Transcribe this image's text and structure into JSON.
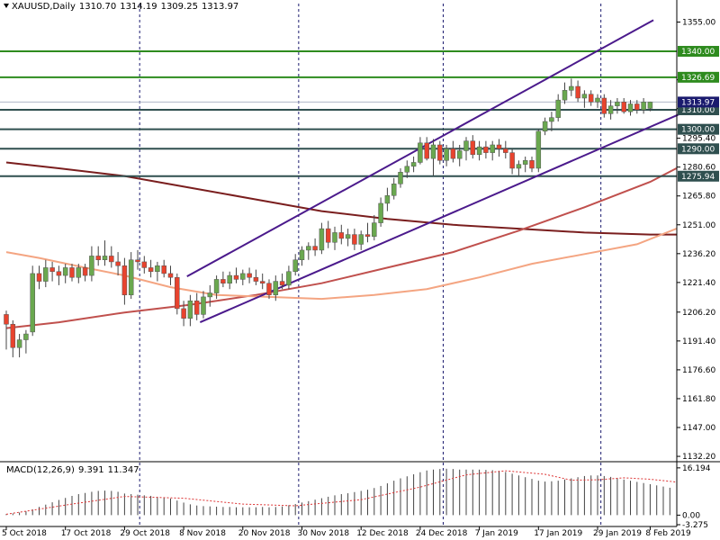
{
  "header": {
    "symbol": "XAUUSD,Daily",
    "open": "1310.70",
    "high": "1314.19",
    "low": "1309.25",
    "close": "1313.97"
  },
  "macd_header": {
    "name": "MACD(12,26,9)",
    "main": "9.391",
    "signal": "11.347"
  },
  "colors": {
    "bull": "#6aa84f",
    "bear": "#e8432e",
    "ma_fast": "#f4a582",
    "ma_mid": "#c0504d",
    "ma_slow": "#7a1e1e",
    "channel": "#4b1a8c",
    "support_green": "#2e8b1e",
    "support_dark": "#2f4f4f",
    "price_label": "#1a1a6e"
  },
  "chart_data": {
    "type": "candlestick",
    "ylim": [
      1129.92,
      1364.48
    ],
    "y_ticks": [
      "1355.00",
      "1325.40",
      "1310.60",
      "1295.40",
      "1280.60",
      "1265.80",
      "1251.00",
      "1236.20",
      "1221.40",
      "1206.20",
      "1191.40",
      "1176.60",
      "1161.80",
      "1147.00",
      "1132.20"
    ],
    "x_ticks": [
      {
        "i": 0,
        "label": "5 Oct 2018"
      },
      {
        "i": 9,
        "label": "17 Oct 2018"
      },
      {
        "i": 18,
        "label": "29 Oct 2018"
      },
      {
        "i": 27,
        "label": "8 Nov 2018"
      },
      {
        "i": 36,
        "label": "20 Nov 2018"
      },
      {
        "i": 45,
        "label": "30 Nov 2018"
      },
      {
        "i": 54,
        "label": "12 Dec 2018"
      },
      {
        "i": 63,
        "label": "24 Dec 2018"
      },
      {
        "i": 72,
        "label": "7 Jan 2019"
      },
      {
        "i": 81,
        "label": "17 Jan 2019"
      },
      {
        "i": 90,
        "label": "29 Jan 2019"
      },
      {
        "i": 98,
        "label": "8 Feb 2019"
      }
    ],
    "period_separators": [
      20.3,
      44.5,
      66.5,
      90.5
    ],
    "candles": [
      {
        "o": 1205.0,
        "h": 1207.0,
        "l": 1187.0,
        "c": 1200.0
      },
      {
        "o": 1200.0,
        "h": 1202.0,
        "l": 1183.0,
        "c": 1188.0
      },
      {
        "o": 1188.0,
        "h": 1195.0,
        "l": 1183.0,
        "c": 1192.0
      },
      {
        "o": 1192.0,
        "h": 1197.0,
        "l": 1185.0,
        "c": 1195.0
      },
      {
        "o": 1196.0,
        "h": 1230.0,
        "l": 1194.0,
        "c": 1226.0
      },
      {
        "o": 1226.0,
        "h": 1230.0,
        "l": 1218.0,
        "c": 1222.0
      },
      {
        "o": 1222.0,
        "h": 1233.0,
        "l": 1219.0,
        "c": 1229.0
      },
      {
        "o": 1229.0,
        "h": 1232.0,
        "l": 1222.0,
        "c": 1227.0
      },
      {
        "o": 1227.0,
        "h": 1230.0,
        "l": 1220.0,
        "c": 1225.0
      },
      {
        "o": 1225.0,
        "h": 1231.0,
        "l": 1221.0,
        "c": 1229.0
      },
      {
        "o": 1229.0,
        "h": 1231.0,
        "l": 1222.0,
        "c": 1224.0
      },
      {
        "o": 1224.0,
        "h": 1231.0,
        "l": 1221.0,
        "c": 1229.0
      },
      {
        "o": 1229.0,
        "h": 1231.0,
        "l": 1222.0,
        "c": 1225.0
      },
      {
        "o": 1225.0,
        "h": 1240.0,
        "l": 1222.0,
        "c": 1235.0
      },
      {
        "o": 1235.0,
        "h": 1240.0,
        "l": 1230.0,
        "c": 1233.0
      },
      {
        "o": 1233.0,
        "h": 1243.0,
        "l": 1230.0,
        "c": 1235.0
      },
      {
        "o": 1235.0,
        "h": 1240.0,
        "l": 1229.0,
        "c": 1232.0
      },
      {
        "o": 1232.0,
        "h": 1237.0,
        "l": 1225.0,
        "c": 1230.0
      },
      {
        "o": 1230.0,
        "h": 1234.0,
        "l": 1210.0,
        "c": 1215.0
      },
      {
        "o": 1215.0,
        "h": 1237.0,
        "l": 1213.0,
        "c": 1233.0
      },
      {
        "o": 1233.0,
        "h": 1238.0,
        "l": 1228.0,
        "c": 1232.0
      },
      {
        "o": 1232.0,
        "h": 1235.0,
        "l": 1226.0,
        "c": 1229.0
      },
      {
        "o": 1229.0,
        "h": 1233.0,
        "l": 1224.0,
        "c": 1227.0
      },
      {
        "o": 1227.0,
        "h": 1232.0,
        "l": 1222.0,
        "c": 1230.0
      },
      {
        "o": 1230.0,
        "h": 1233.0,
        "l": 1224.0,
        "c": 1226.0
      },
      {
        "o": 1226.0,
        "h": 1230.0,
        "l": 1220.0,
        "c": 1224.0
      },
      {
        "o": 1224.0,
        "h": 1226.0,
        "l": 1205.0,
        "c": 1208.0
      },
      {
        "o": 1208.0,
        "h": 1212.0,
        "l": 1199.0,
        "c": 1203.0
      },
      {
        "o": 1203.0,
        "h": 1215.0,
        "l": 1199.0,
        "c": 1212.0
      },
      {
        "o": 1212.0,
        "h": 1216.0,
        "l": 1202.0,
        "c": 1205.0
      },
      {
        "o": 1205.0,
        "h": 1217.0,
        "l": 1203.0,
        "c": 1214.0
      },
      {
        "o": 1214.0,
        "h": 1220.0,
        "l": 1209.0,
        "c": 1216.0
      },
      {
        "o": 1216.0,
        "h": 1225.0,
        "l": 1213.0,
        "c": 1223.0
      },
      {
        "o": 1223.0,
        "h": 1227.0,
        "l": 1219.0,
        "c": 1221.0
      },
      {
        "o": 1221.0,
        "h": 1227.0,
        "l": 1218.0,
        "c": 1225.0
      },
      {
        "o": 1225.0,
        "h": 1229.0,
        "l": 1221.0,
        "c": 1223.0
      },
      {
        "o": 1223.0,
        "h": 1228.0,
        "l": 1220.0,
        "c": 1226.0
      },
      {
        "o": 1226.0,
        "h": 1229.0,
        "l": 1221.0,
        "c": 1224.0
      },
      {
        "o": 1224.0,
        "h": 1228.0,
        "l": 1220.0,
        "c": 1222.0
      },
      {
        "o": 1222.0,
        "h": 1226.0,
        "l": 1218.0,
        "c": 1221.0
      },
      {
        "o": 1221.0,
        "h": 1223.0,
        "l": 1213.0,
        "c": 1215.0
      },
      {
        "o": 1215.0,
        "h": 1225.0,
        "l": 1212.0,
        "c": 1222.0
      },
      {
        "o": 1222.0,
        "h": 1226.0,
        "l": 1218.0,
        "c": 1220.0
      },
      {
        "o": 1220.0,
        "h": 1230.0,
        "l": 1218.0,
        "c": 1227.0
      },
      {
        "o": 1227.0,
        "h": 1236.0,
        "l": 1225.0,
        "c": 1233.0
      },
      {
        "o": 1233.0,
        "h": 1240.0,
        "l": 1230.0,
        "c": 1238.0
      },
      {
        "o": 1238.0,
        "h": 1242.0,
        "l": 1233.0,
        "c": 1240.0
      },
      {
        "o": 1240.0,
        "h": 1244.0,
        "l": 1235.0,
        "c": 1238.0
      },
      {
        "o": 1238.0,
        "h": 1252.0,
        "l": 1236.0,
        "c": 1249.0
      },
      {
        "o": 1249.0,
        "h": 1253.0,
        "l": 1239.0,
        "c": 1242.0
      },
      {
        "o": 1242.0,
        "h": 1250.0,
        "l": 1238.0,
        "c": 1247.0
      },
      {
        "o": 1247.0,
        "h": 1251.0,
        "l": 1241.0,
        "c": 1244.0
      },
      {
        "o": 1244.0,
        "h": 1249.0,
        "l": 1240.0,
        "c": 1246.0
      },
      {
        "o": 1246.0,
        "h": 1249.0,
        "l": 1238.0,
        "c": 1241.0
      },
      {
        "o": 1241.0,
        "h": 1248.0,
        "l": 1238.0,
        "c": 1246.0
      },
      {
        "o": 1246.0,
        "h": 1252.0,
        "l": 1242.0,
        "c": 1245.0
      },
      {
        "o": 1245.0,
        "h": 1256.0,
        "l": 1243.0,
        "c": 1252.0
      },
      {
        "o": 1252.0,
        "h": 1265.0,
        "l": 1250.0,
        "c": 1262.0
      },
      {
        "o": 1262.0,
        "h": 1270.0,
        "l": 1258.0,
        "c": 1266.0
      },
      {
        "o": 1266.0,
        "h": 1275.0,
        "l": 1264.0,
        "c": 1272.0
      },
      {
        "o": 1272.0,
        "h": 1280.0,
        "l": 1270.0,
        "c": 1278.0
      },
      {
        "o": 1278.0,
        "h": 1284.0,
        "l": 1275.0,
        "c": 1281.0
      },
      {
        "o": 1281.0,
        "h": 1286.0,
        "l": 1278.0,
        "c": 1283.0
      },
      {
        "o": 1283.0,
        "h": 1296.0,
        "l": 1282.0,
        "c": 1293.0
      },
      {
        "o": 1293.0,
        "h": 1296.0,
        "l": 1284.0,
        "c": 1285.0
      },
      {
        "o": 1285.0,
        "h": 1295.0,
        "l": 1276.0,
        "c": 1292.0
      },
      {
        "o": 1292.0,
        "h": 1294.0,
        "l": 1282.0,
        "c": 1284.0
      },
      {
        "o": 1284.0,
        "h": 1292.0,
        "l": 1281.0,
        "c": 1290.0
      },
      {
        "o": 1290.0,
        "h": 1294.0,
        "l": 1283.0,
        "c": 1285.0
      },
      {
        "o": 1285.0,
        "h": 1292.0,
        "l": 1281.0,
        "c": 1289.0
      },
      {
        "o": 1289.0,
        "h": 1296.0,
        "l": 1284.0,
        "c": 1294.0
      },
      {
        "o": 1294.0,
        "h": 1297.0,
        "l": 1285.0,
        "c": 1287.0
      },
      {
        "o": 1287.0,
        "h": 1294.0,
        "l": 1284.0,
        "c": 1291.0
      },
      {
        "o": 1291.0,
        "h": 1294.0,
        "l": 1285.0,
        "c": 1288.0
      },
      {
        "o": 1288.0,
        "h": 1294.0,
        "l": 1284.0,
        "c": 1292.0
      },
      {
        "o": 1292.0,
        "h": 1295.0,
        "l": 1286.0,
        "c": 1290.0
      },
      {
        "o": 1290.0,
        "h": 1294.0,
        "l": 1285.0,
        "c": 1288.0
      },
      {
        "o": 1288.0,
        "h": 1290.0,
        "l": 1277.0,
        "c": 1280.0
      },
      {
        "o": 1280.0,
        "h": 1284.0,
        "l": 1276.0,
        "c": 1282.0
      },
      {
        "o": 1282.0,
        "h": 1286.0,
        "l": 1278.0,
        "c": 1284.0
      },
      {
        "o": 1284.0,
        "h": 1286.0,
        "l": 1278.0,
        "c": 1280.0
      },
      {
        "o": 1280.0,
        "h": 1300.0,
        "l": 1278.0,
        "c": 1299.0
      },
      {
        "o": 1299.0,
        "h": 1306.0,
        "l": 1297.0,
        "c": 1304.0
      },
      {
        "o": 1304.0,
        "h": 1309.0,
        "l": 1299.0,
        "c": 1306.0
      },
      {
        "o": 1306.0,
        "h": 1318.0,
        "l": 1304.0,
        "c": 1315.0
      },
      {
        "o": 1315.0,
        "h": 1324.0,
        "l": 1313.0,
        "c": 1320.0
      },
      {
        "o": 1320.0,
        "h": 1326.0,
        "l": 1317.0,
        "c": 1322.0
      },
      {
        "o": 1322.0,
        "h": 1325.0,
        "l": 1314.0,
        "c": 1316.0
      },
      {
        "o": 1316.0,
        "h": 1320.0,
        "l": 1311.0,
        "c": 1318.0
      },
      {
        "o": 1318.0,
        "h": 1320.0,
        "l": 1312.0,
        "c": 1314.0
      },
      {
        "o": 1314.0,
        "h": 1318.0,
        "l": 1311.0,
        "c": 1316.0
      },
      {
        "o": 1316.0,
        "h": 1318.0,
        "l": 1306.0,
        "c": 1308.0
      },
      {
        "o": 1308.0,
        "h": 1315.0,
        "l": 1305.0,
        "c": 1312.0
      },
      {
        "o": 1312.0,
        "h": 1316.0,
        "l": 1308.0,
        "c": 1314.0
      },
      {
        "o": 1314.0,
        "h": 1316.0,
        "l": 1308.0,
        "c": 1309.0
      },
      {
        "o": 1309.0,
        "h": 1315.0,
        "l": 1307.0,
        "c": 1313.0
      },
      {
        "o": 1313.0,
        "h": 1315.0,
        "l": 1308.0,
        "c": 1310.0
      },
      {
        "o": 1310.0,
        "h": 1316.0,
        "l": 1308.0,
        "c": 1314.0
      },
      {
        "o": 1310.7,
        "h": 1314.19,
        "l": 1309.25,
        "c": 1313.97
      }
    ],
    "moving_averages": [
      {
        "key": "ma_slow",
        "points": [
          [
            0,
            1283.0
          ],
          [
            8,
            1280.0
          ],
          [
            18,
            1276.0
          ],
          [
            28,
            1270.0
          ],
          [
            38,
            1264.0
          ],
          [
            48,
            1258.0
          ],
          [
            58,
            1254.0
          ],
          [
            68,
            1251.0
          ],
          [
            78,
            1249.0
          ],
          [
            88,
            1247.0
          ],
          [
            98,
            1246.0
          ],
          [
            102,
            1246.0
          ]
        ]
      },
      {
        "key": "ma_mid",
        "points": [
          [
            0,
            1198.0
          ],
          [
            8,
            1201.0
          ],
          [
            18,
            1206.0
          ],
          [
            28,
            1210.0
          ],
          [
            38,
            1215.0
          ],
          [
            48,
            1221.0
          ],
          [
            58,
            1229.0
          ],
          [
            68,
            1237.0
          ],
          [
            78,
            1248.0
          ],
          [
            88,
            1260.0
          ],
          [
            98,
            1273.0
          ],
          [
            102,
            1280.0
          ]
        ]
      },
      {
        "key": "ma_fast",
        "points": [
          [
            0,
            1237.0
          ],
          [
            5,
            1234.0
          ],
          [
            12,
            1229.0
          ],
          [
            18,
            1225.0
          ],
          [
            25,
            1219.0
          ],
          [
            32,
            1215.0
          ],
          [
            40,
            1214.0
          ],
          [
            48,
            1213.0
          ],
          [
            56,
            1215.0
          ],
          [
            64,
            1218.0
          ],
          [
            72,
            1224.0
          ],
          [
            80,
            1231.0
          ],
          [
            88,
            1236.0
          ],
          [
            96,
            1241.0
          ],
          [
            102,
            1249.0
          ]
        ]
      }
    ],
    "channel_lines": [
      {
        "x0": 27.5,
        "y0": 1224.5,
        "x1": 98.5,
        "y1": 1356.0
      },
      {
        "x0": 29.5,
        "y0": 1201.0,
        "x1": 104.0,
        "y1": 1310.0
      }
    ],
    "horizontal_levels": [
      {
        "value": 1340.0,
        "label": "1340.00",
        "color_key": "support_green"
      },
      {
        "value": 1326.69,
        "label": "1326.69",
        "color_key": "support_green"
      },
      {
        "value": 1310.0,
        "label": "1310.00",
        "color_key": "support_dark"
      },
      {
        "value": 1300.0,
        "label": "1300.00",
        "color_key": "support_dark"
      },
      {
        "value": 1290.0,
        "label": "1290.00",
        "color_key": "support_dark"
      },
      {
        "value": 1275.94,
        "label": "1275.94",
        "color_key": "support_dark"
      }
    ],
    "current_price": {
      "value": 1313.97,
      "label": "1313.97"
    },
    "macd": {
      "ylim": [
        -3.275,
        18.0
      ],
      "y_ticks": [
        "16.194",
        "0.00",
        "-3.275"
      ],
      "histogram": [
        0.4,
        0.6,
        0.9,
        1.3,
        2.0,
        2.8,
        3.6,
        4.4,
        5.2,
        5.9,
        6.6,
        7.2,
        7.6,
        8.0,
        8.3,
        8.4,
        8.3,
        8.0,
        7.4,
        7.2,
        7.0,
        6.8,
        6.6,
        6.3,
        6.0,
        5.7,
        5.0,
        4.3,
        3.7,
        3.3,
        3.1,
        3.0,
        2.9,
        2.8,
        2.8,
        2.7,
        2.7,
        2.7,
        2.7,
        2.8,
        2.7,
        2.8,
        3.0,
        3.4,
        3.8,
        4.3,
        4.8,
        5.3,
        5.8,
        6.3,
        6.8,
        7.2,
        7.5,
        7.9,
        8.3,
        8.7,
        9.3,
        10.0,
        10.9,
        11.8,
        12.6,
        13.3,
        14.0,
        14.7,
        15.3,
        15.6,
        15.8,
        15.9,
        15.8,
        15.6,
        15.6,
        15.6,
        15.6,
        15.5,
        15.4,
        15.2,
        14.8,
        14.2,
        13.6,
        13.0,
        12.4,
        11.8,
        11.5,
        11.6,
        11.8,
        12.2,
        12.6,
        13.0,
        13.4,
        13.6,
        13.6,
        13.4,
        13.1,
        12.7,
        12.2,
        11.8,
        11.4,
        11.0,
        10.6,
        10.2,
        9.8,
        9.391
      ],
      "signal": [
        [
          0,
          0.3
        ],
        [
          10,
          3.8
        ],
        [
          18,
          6.4
        ],
        [
          27,
          5.8
        ],
        [
          36,
          3.8
        ],
        [
          44,
          3.2
        ],
        [
          54,
          5.3
        ],
        [
          63,
          9.6
        ],
        [
          70,
          13.8
        ],
        [
          76,
          15.2
        ],
        [
          82,
          14.0
        ],
        [
          86,
          12.0
        ],
        [
          90,
          12.1
        ],
        [
          94,
          12.8
        ],
        [
          98,
          12.3
        ],
        [
          102,
          11.347
        ]
      ]
    }
  }
}
